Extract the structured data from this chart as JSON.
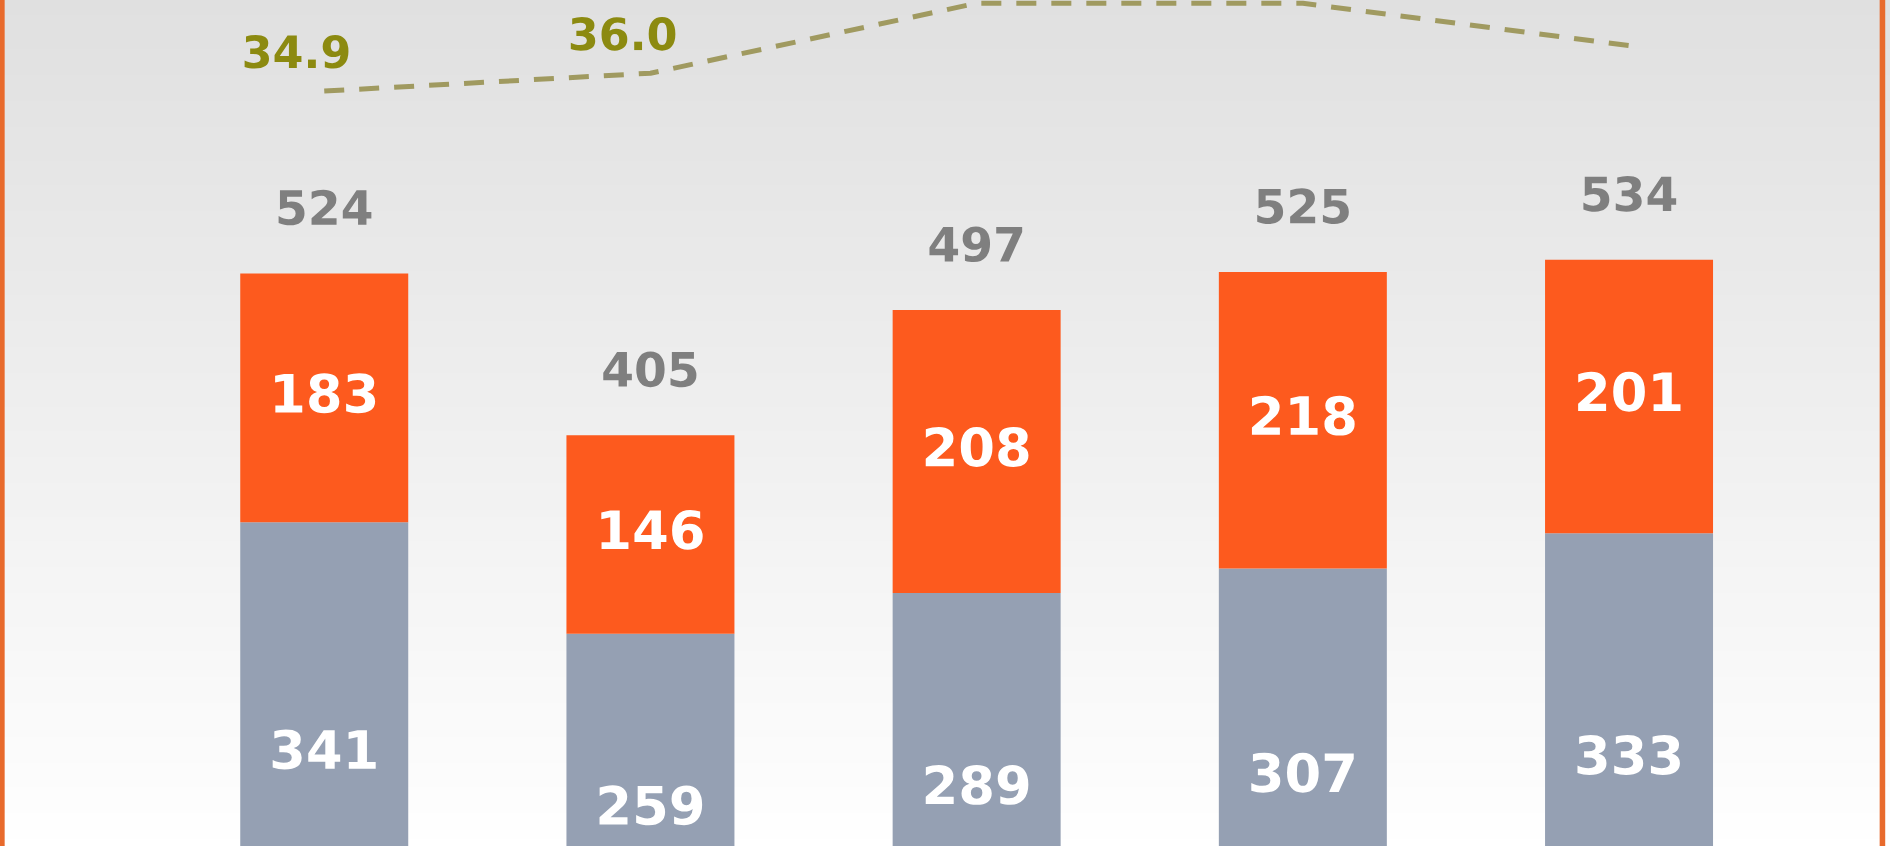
{
  "chart_data": [
    {
      "type": "bar",
      "stacked": true,
      "categories": [
        null,
        null,
        null,
        null,
        null
      ],
      "ylim": [
        103,
        725
      ],
      "data_labels": true,
      "series": [
        {
          "color": "#95a0b3",
          "values": [
            341,
            259,
            289,
            307,
            333
          ]
        },
        {
          "color": "#fd5a1e",
          "values": [
            183,
            146,
            208,
            218,
            201
          ]
        }
      ],
      "totals": [
        "524",
        "405",
        "497",
        "525",
        "534"
      ]
    },
    {
      "type": "line",
      "ylim": [
        -11.5,
        40.5
      ],
      "categories": [
        null,
        null,
        null,
        null,
        null
      ],
      "line_style": "dashed",
      "series": [
        {
          "color": "#a09a60",
          "values": [
            34.9,
            36.0,
            40.3,
            40.3,
            37.7
          ],
          "value_labels": [
            "34.9",
            "36.0",
            null,
            null,
            null
          ]
        }
      ]
    }
  ]
}
